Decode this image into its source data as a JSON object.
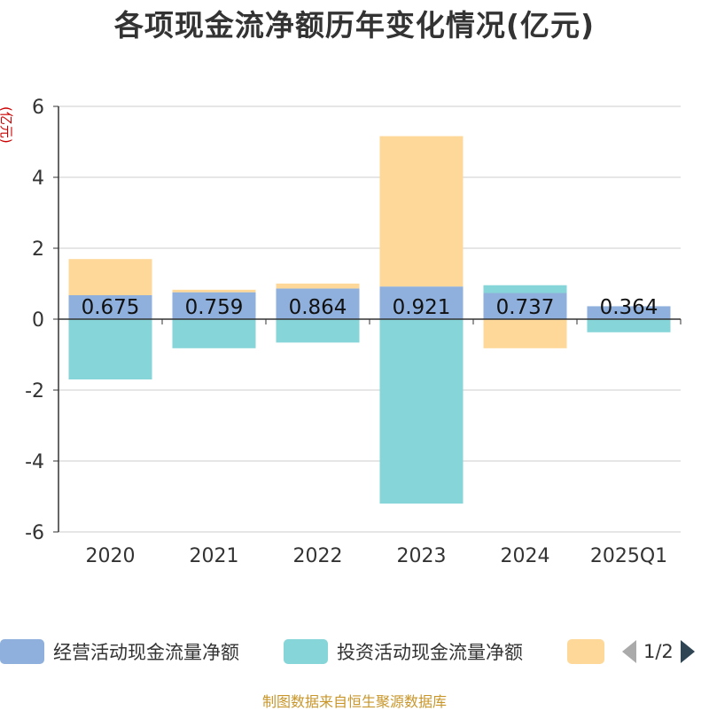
{
  "chart_data": {
    "type": "bar",
    "stacked": true,
    "title": "各项现金流净额历年变化情况(亿元)",
    "ylabel": "(亿元)",
    "categories": [
      "2020",
      "2021",
      "2022",
      "2023",
      "2024",
      "2025Q1"
    ],
    "ylim": [
      -6,
      6
    ],
    "yticks": [
      6,
      4,
      2,
      0,
      -2,
      -4,
      -6
    ],
    "grid": true,
    "series": [
      {
        "name": "经营活动现金流量净额",
        "color": "#8fb0dc",
        "values": [
          0.675,
          0.759,
          0.864,
          0.921,
          0.737,
          0.364
        ],
        "show_labels": true
      },
      {
        "name": "投资活动现金流量净额",
        "color": "#86d5d8",
        "values": [
          -1.7,
          -0.82,
          -0.66,
          -5.2,
          0.22,
          -0.37
        ]
      },
      {
        "name": "",
        "color": "#fdd899",
        "values": [
          1.02,
          0.07,
          0.14,
          4.24,
          -0.82,
          0.0
        ]
      }
    ],
    "data_labels": [
      "0.675",
      "0.759",
      "0.864",
      "0.921",
      "0.737",
      "0.364"
    ]
  },
  "legend": {
    "pager_text": "1/2"
  },
  "source": "制图数据来自恒生聚源数据库"
}
